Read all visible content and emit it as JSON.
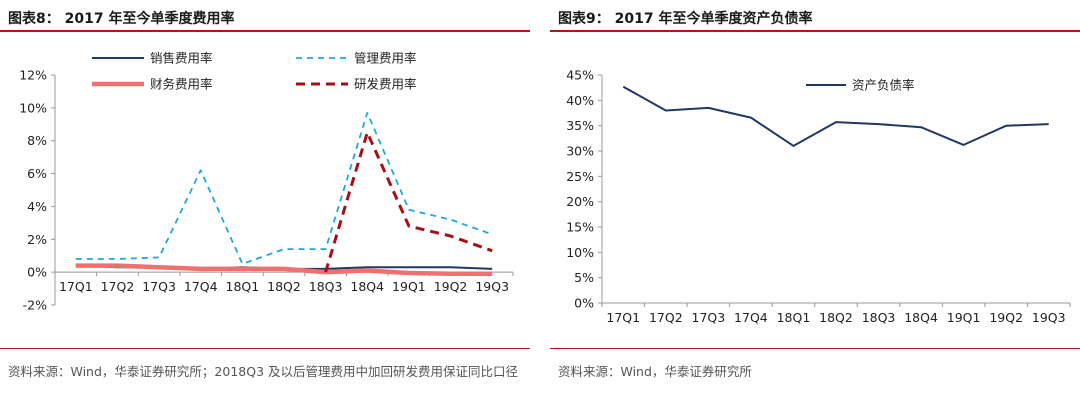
{
  "left": {
    "title": "图表8：  2017 年至今单季度费用率",
    "source": "资料来源：Wind，华泰证券研究所；2018Q3 及以后管理费用中加回研发费用保证同比口径"
  },
  "right": {
    "title": "图表9：  2017 年至今单季度资产负债率",
    "source": "资料来源：Wind，华泰证券研究所"
  },
  "colors": {
    "accent_rule": "#b0161c",
    "navy": "#1f3864",
    "light_blue": "#1ea7e0",
    "salmon": "#f07070",
    "dark_red": "#a50f15"
  },
  "chart_data": [
    {
      "type": "line",
      "categories": [
        "17Q1",
        "17Q2",
        "17Q3",
        "17Q4",
        "18Q1",
        "18Q2",
        "18Q3",
        "18Q4",
        "19Q1",
        "19Q2",
        "19Q3"
      ],
      "ylim": [
        -2,
        12
      ],
      "yticks": [
        "-2%",
        "0%",
        "2%",
        "4%",
        "6%",
        "8%",
        "10%",
        "12%"
      ],
      "ytick_values": [
        -2,
        0,
        2,
        4,
        6,
        8,
        10,
        12
      ],
      "series": [
        {
          "name": "销售费用率",
          "style": "solid",
          "color": "#1f3864",
          "values": [
            0.4,
            0.3,
            0.3,
            0.2,
            0.3,
            0.2,
            0.2,
            0.3,
            0.3,
            0.3,
            0.2
          ]
        },
        {
          "name": "管理费用率",
          "style": "dashed-light",
          "color": "#1ea7e0",
          "values": [
            0.8,
            0.8,
            0.9,
            6.2,
            0.5,
            1.4,
            1.4,
            9.7,
            3.8,
            3.2,
            2.3
          ]
        },
        {
          "name": "财务费用率",
          "style": "thick",
          "color": "#f07070",
          "values": [
            0.4,
            0.4,
            0.3,
            0.2,
            0.2,
            0.2,
            0.0,
            0.1,
            -0.05,
            -0.1,
            -0.1
          ]
        },
        {
          "name": "研发费用率",
          "style": "dashed-bold",
          "color": "#a50f15",
          "values": [
            null,
            null,
            null,
            null,
            null,
            null,
            0.0,
            8.5,
            2.8,
            2.2,
            1.3
          ]
        }
      ],
      "legend": "top, two columns"
    },
    {
      "type": "line",
      "categories": [
        "17Q1",
        "17Q2",
        "17Q3",
        "17Q4",
        "18Q1",
        "18Q2",
        "18Q3",
        "18Q4",
        "19Q1",
        "19Q2",
        "19Q3"
      ],
      "ylim": [
        0,
        45
      ],
      "yticks": [
        "0%",
        "5%",
        "10%",
        "15%",
        "20%",
        "25%",
        "30%",
        "35%",
        "40%",
        "45%"
      ],
      "ytick_values": [
        0,
        5,
        10,
        15,
        20,
        25,
        30,
        35,
        40,
        45
      ],
      "series": [
        {
          "name": "资产负债率",
          "style": "solid",
          "color": "#1f3864",
          "values": [
            42.7,
            38.0,
            38.5,
            36.6,
            31.0,
            35.7,
            35.3,
            34.7,
            31.2,
            35.0,
            35.3
          ]
        }
      ],
      "legend": "top-left inside plot"
    }
  ]
}
